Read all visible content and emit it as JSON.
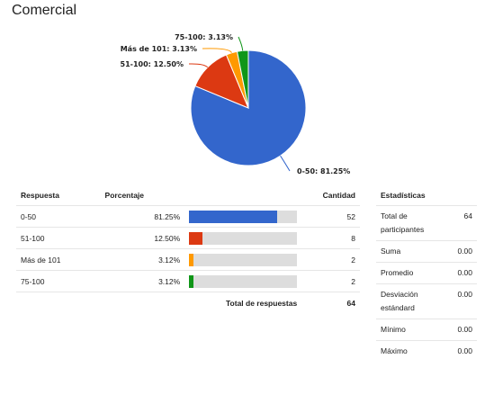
{
  "title": "Comercial",
  "chart_data": {
    "type": "pie",
    "slices": [
      {
        "label": "0-50",
        "value": 81.25,
        "text": "0-50: 81.25%",
        "color": "#3366cc"
      },
      {
        "label": "51-100",
        "value": 12.5,
        "text": "51-100: 12.50%",
        "color": "#dc3912"
      },
      {
        "label": "Más de 101",
        "value": 3.13,
        "text": "Más de 101: 3.13%",
        "color": "#ff9900"
      },
      {
        "label": "75-100",
        "value": 3.13,
        "text": "75-100: 3.13%",
        "color": "#109618"
      }
    ]
  },
  "responses": {
    "headers": {
      "respuesta": "Respuesta",
      "porcentaje": "Porcentaje",
      "cantidad": "Cantidad"
    },
    "rows": [
      {
        "label": "0-50",
        "pct": "81.25%",
        "fraction": 0.8125,
        "count": "52",
        "color": "#3366cc"
      },
      {
        "label": "51-100",
        "pct": "12.50%",
        "fraction": 0.125,
        "count": "8",
        "color": "#dc3912"
      },
      {
        "label": "Más de 101",
        "pct": "3.12%",
        "fraction": 0.0312,
        "count": "2",
        "color": "#ff9900"
      },
      {
        "label": "75-100",
        "pct": "3.12%",
        "fraction": 0.0312,
        "count": "2",
        "color": "#109618"
      }
    ],
    "total_label": "Total de respuestas",
    "total_value": "64"
  },
  "stats": {
    "header": "Estadísticas",
    "rows": [
      {
        "label": "Total de participantes",
        "value": "64"
      },
      {
        "label": "Suma",
        "value": "0.00"
      },
      {
        "label": "Promedio",
        "value": "0.00"
      },
      {
        "label": "Desviación estándard",
        "value": "0.00"
      },
      {
        "label": "Mínimo",
        "value": "0.00"
      },
      {
        "label": "Máximo",
        "value": "0.00"
      }
    ]
  }
}
